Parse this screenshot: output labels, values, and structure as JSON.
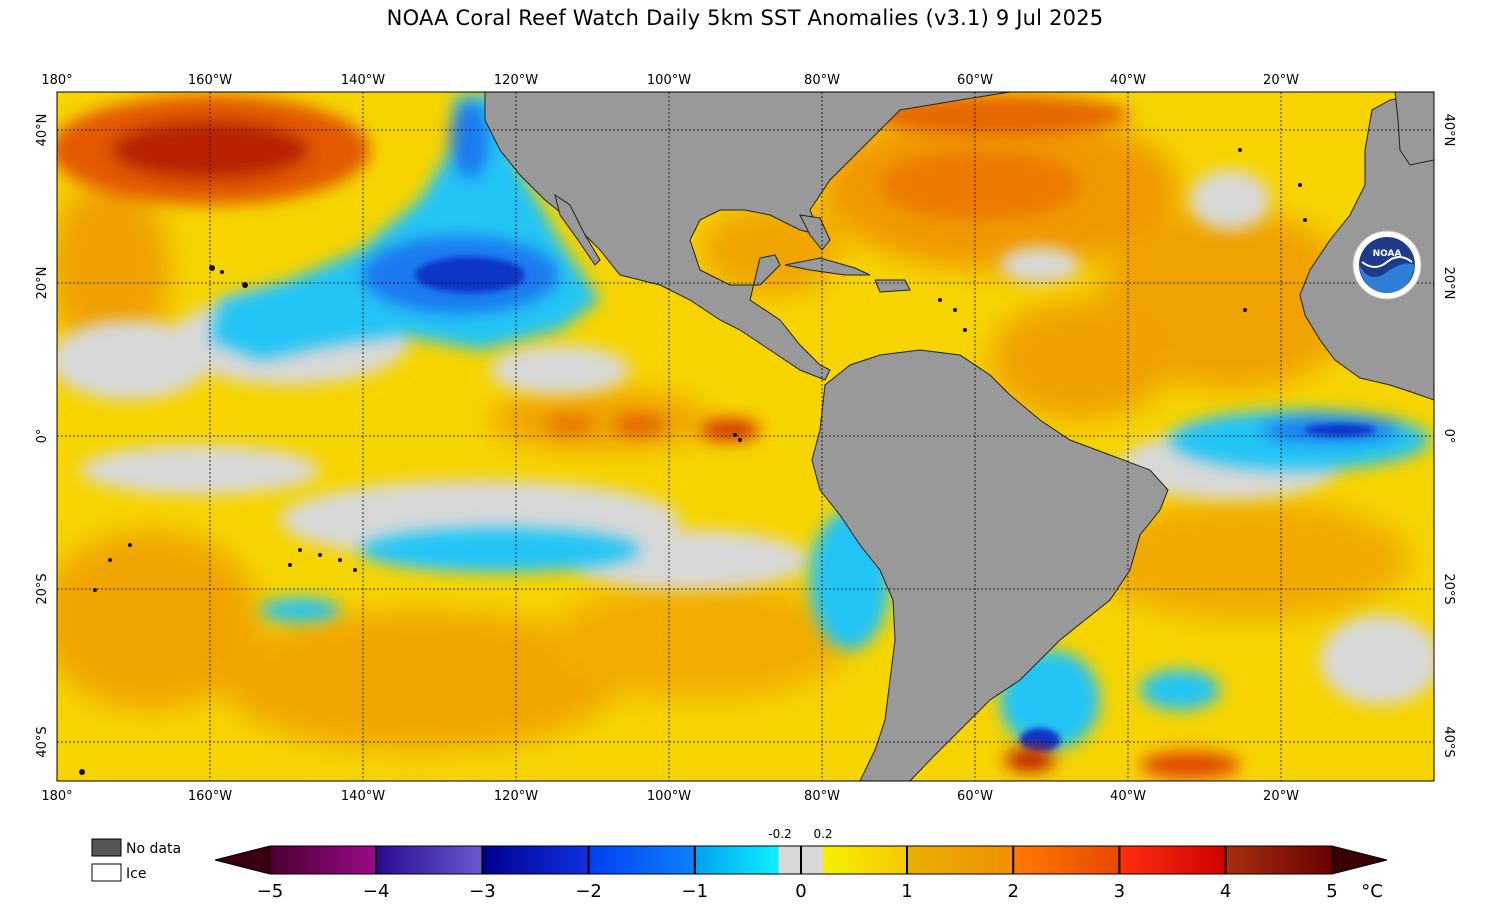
{
  "title": "NOAA Coral Reef Watch Daily 5km SST Anomalies  (v3.1)   9 Jul 2025",
  "axes": {
    "lon_labels": [
      "180°",
      "160°W",
      "140°W",
      "120°W",
      "100°W",
      "80°W",
      "60°W",
      "40°W",
      "20°W"
    ],
    "lat_labels": [
      "40°N",
      "20°N",
      "0°",
      "20°S",
      "40°S"
    ]
  },
  "legend": {
    "no_data": "No data",
    "ice": "Ice"
  },
  "colorbar": {
    "ticks": [
      "−5",
      "−4",
      "−3",
      "−2",
      "−1",
      "0",
      "1",
      "2",
      "3",
      "4",
      "5"
    ],
    "small_ticks": [
      "-0.2",
      "0.2"
    ],
    "unit": "°C"
  },
  "logo": {
    "text": "NOAA"
  },
  "colors": {
    "land": "#999999",
    "nodata": "#d8d8d8",
    "warm_1": "#f7e600",
    "warm_2": "#f5b800",
    "warm_3": "#ef8a00",
    "warm_4": "#e34a00",
    "warm_5": "#a81800",
    "cool_1": "#22c4f5",
    "cool_2": "#1e7af0",
    "cool_3": "#1036c8"
  }
}
